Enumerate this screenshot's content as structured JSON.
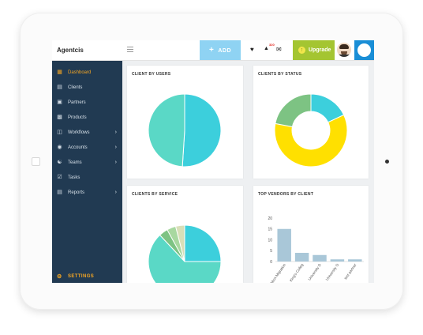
{
  "app": {
    "brand": "Agentcis"
  },
  "topbar": {
    "add_label": "ADD",
    "notification_count": "320",
    "upgrade_label": "Upgrade"
  },
  "sidebar": {
    "items": [
      {
        "label": "Dashboard",
        "icon": "dashboard-icon",
        "active": true,
        "chevron": false
      },
      {
        "label": "Clients",
        "icon": "clients-icon",
        "active": false,
        "chevron": false
      },
      {
        "label": "Partners",
        "icon": "partners-icon",
        "active": false,
        "chevron": false
      },
      {
        "label": "Products",
        "icon": "products-icon",
        "active": false,
        "chevron": false
      },
      {
        "label": "Workflows",
        "icon": "workflows-icon",
        "active": false,
        "chevron": true
      },
      {
        "label": "Accounts",
        "icon": "accounts-icon",
        "active": false,
        "chevron": true
      },
      {
        "label": "Teams",
        "icon": "teams-icon",
        "active": false,
        "chevron": true
      },
      {
        "label": "Tasks",
        "icon": "tasks-icon",
        "active": false,
        "chevron": false
      },
      {
        "label": "Reports",
        "icon": "reports-icon",
        "active": false,
        "chevron": true
      }
    ],
    "settings_label": "SETTINGS"
  },
  "colors": {
    "sidebar_bg": "#213a52",
    "accent_orange": "#f5a623",
    "add_button": "#8fd3f3",
    "upgrade_button": "#a4c531",
    "team_button": "#1a8ed6",
    "teal_light": "#5ad8c6",
    "teal": "#3ccfdc",
    "yellow": "#ffe000",
    "green": "#7dc383",
    "bar_blue": "#a9c7d8"
  },
  "chart_data": [
    {
      "type": "pie",
      "title": "CLIENT BY USERS",
      "slices": [
        {
          "value": 51,
          "color": "#3ccfdc"
        },
        {
          "value": 49,
          "color": "#5ad8c6"
        }
      ]
    },
    {
      "type": "pie",
      "title": "CLIENTS BY STATUS",
      "donut": true,
      "slices": [
        {
          "value": 18,
          "color": "#3ccfdc"
        },
        {
          "value": 60,
          "color": "#ffe000"
        },
        {
          "value": 22,
          "color": "#7dc383"
        }
      ]
    },
    {
      "type": "pie",
      "title": "CLIENTS BY SERVICE",
      "slices": [
        {
          "value": 25,
          "color": "#3ccfdc"
        },
        {
          "value": 63,
          "color": "#5ad8c6"
        },
        {
          "value": 4,
          "color": "#7dc383"
        },
        {
          "value": 4,
          "color": "#a8d8a0"
        },
        {
          "value": 4,
          "color": "#d8dfb8"
        }
      ]
    },
    {
      "type": "bar",
      "title": "TOP VENDORS BY CLIENT",
      "categories": [
        "Blackbox Migration",
        "King's Colleg",
        "University D",
        "University O",
        "test partner"
      ],
      "values": [
        15,
        4,
        3,
        1,
        1
      ],
      "ylim": [
        0,
        20
      ],
      "yticks": [
        0,
        5,
        10,
        15,
        20
      ],
      "bar_color": "#a9c7d8"
    }
  ]
}
